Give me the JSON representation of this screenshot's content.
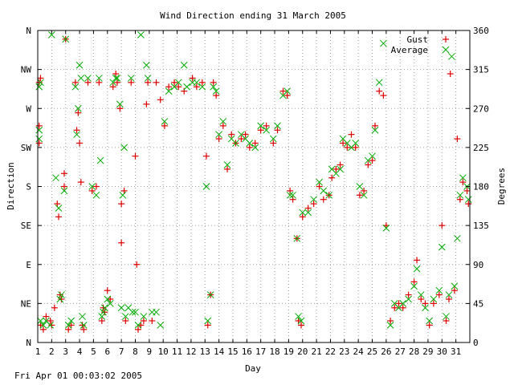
{
  "chart_data": {
    "type": "scatter",
    "title": "Wind Direction ending 31 March 2005",
    "xlabel": "Day",
    "ylabel_left": "Direction",
    "ylabel_right": "Degrees",
    "xlim": [
      1,
      32
    ],
    "ylim": [
      0,
      360
    ],
    "x_ticks": [
      "1",
      "2",
      "3",
      "4",
      "5",
      "6",
      "7",
      "8",
      "9",
      "10",
      "11",
      "12",
      "13",
      "14",
      "15",
      "16",
      "17",
      "18",
      "19",
      "20",
      "21",
      "22",
      "23",
      "24",
      "25",
      "26",
      "27",
      "28",
      "29",
      "30",
      "31"
    ],
    "y_left_ticks": [
      "N",
      "NE",
      "E",
      "SE",
      "S",
      "SW",
      "W",
      "NW",
      "N"
    ],
    "y_right_ticks": [
      "0",
      "45",
      "90",
      "135",
      "180",
      "225",
      "270",
      "315",
      "360"
    ],
    "grid": true,
    "legend_position": "top-right",
    "series": [
      {
        "name": "Gust",
        "color": "#dd0000",
        "marker": "plus",
        "points": [
          [
            1.1,
            300
          ],
          [
            1.2,
            305
          ],
          [
            1.1,
            250
          ],
          [
            1.1,
            230
          ],
          [
            1.2,
            20
          ],
          [
            1.4,
            15
          ],
          [
            1.6,
            30
          ],
          [
            1.9,
            25
          ],
          [
            2.0,
            20
          ],
          [
            2.2,
            40
          ],
          [
            2.4,
            160
          ],
          [
            2.5,
            145
          ],
          [
            2.6,
            55
          ],
          [
            2.7,
            50
          ],
          [
            2.9,
            180
          ],
          [
            2.9,
            195
          ],
          [
            3.0,
            350
          ],
          [
            3.2,
            15
          ],
          [
            3.4,
            20
          ],
          [
            3.7,
            300
          ],
          [
            3.8,
            245
          ],
          [
            3.9,
            265
          ],
          [
            4.0,
            230
          ],
          [
            4.1,
            185
          ],
          [
            4.2,
            20
          ],
          [
            4.3,
            15
          ],
          [
            4.6,
            300
          ],
          [
            4.9,
            175
          ],
          [
            5.2,
            180
          ],
          [
            5.4,
            300
          ],
          [
            5.6,
            25
          ],
          [
            5.7,
            40
          ],
          [
            5.8,
            35
          ],
          [
            6.0,
            60
          ],
          [
            6.2,
            50
          ],
          [
            6.4,
            295
          ],
          [
            6.6,
            310
          ],
          [
            6.7,
            300
          ],
          [
            6.9,
            270
          ],
          [
            7.0,
            115
          ],
          [
            7.0,
            160
          ],
          [
            7.2,
            175
          ],
          [
            7.3,
            25
          ],
          [
            7.7,
            300
          ],
          [
            8.0,
            215
          ],
          [
            8.1,
            90
          ],
          [
            8.2,
            15
          ],
          [
            8.4,
            20
          ],
          [
            8.6,
            25
          ],
          [
            8.8,
            275
          ],
          [
            8.9,
            300
          ],
          [
            9.2,
            25
          ],
          [
            9.5,
            300
          ],
          [
            9.8,
            280
          ],
          [
            10.1,
            250
          ],
          [
            10.4,
            295
          ],
          [
            10.8,
            300
          ],
          [
            11.1,
            295
          ],
          [
            11.5,
            290
          ],
          [
            12.1,
            305
          ],
          [
            12.4,
            295
          ],
          [
            12.8,
            300
          ],
          [
            13.1,
            215
          ],
          [
            13.2,
            20
          ],
          [
            13.4,
            55
          ],
          [
            13.6,
            300
          ],
          [
            13.8,
            285
          ],
          [
            14.0,
            235
          ],
          [
            14.3,
            250
          ],
          [
            14.6,
            200
          ],
          [
            14.9,
            240
          ],
          [
            15.2,
            230
          ],
          [
            15.6,
            235
          ],
          [
            15.9,
            240
          ],
          [
            16.2,
            225
          ],
          [
            16.6,
            230
          ],
          [
            17.0,
            245
          ],
          [
            17.4,
            250
          ],
          [
            17.9,
            230
          ],
          [
            18.2,
            245
          ],
          [
            18.6,
            290
          ],
          [
            18.9,
            285
          ],
          [
            19.1,
            175
          ],
          [
            19.3,
            165
          ],
          [
            19.6,
            120
          ],
          [
            19.7,
            25
          ],
          [
            19.9,
            20
          ],
          [
            20.0,
            145
          ],
          [
            20.4,
            155
          ],
          [
            20.8,
            160
          ],
          [
            21.2,
            180
          ],
          [
            21.5,
            165
          ],
          [
            21.9,
            170
          ],
          [
            22.1,
            190
          ],
          [
            22.4,
            200
          ],
          [
            22.7,
            205
          ],
          [
            22.9,
            230
          ],
          [
            23.2,
            225
          ],
          [
            23.5,
            240
          ],
          [
            23.8,
            225
          ],
          [
            24.1,
            170
          ],
          [
            24.4,
            175
          ],
          [
            24.7,
            205
          ],
          [
            25.0,
            210
          ],
          [
            25.2,
            250
          ],
          [
            25.5,
            290
          ],
          [
            25.8,
            285
          ],
          [
            26.0,
            135
          ],
          [
            26.3,
            25
          ],
          [
            26.6,
            40
          ],
          [
            26.9,
            45
          ],
          [
            27.2,
            40
          ],
          [
            27.6,
            55
          ],
          [
            28.0,
            70
          ],
          [
            28.2,
            95
          ],
          [
            28.5,
            50
          ],
          [
            28.8,
            45
          ],
          [
            29.1,
            20
          ],
          [
            29.4,
            45
          ],
          [
            29.8,
            55
          ],
          [
            30.0,
            135
          ],
          [
            30.3,
            25
          ],
          [
            30.5,
            50
          ],
          [
            30.6,
            310
          ],
          [
            30.9,
            60
          ],
          [
            31.1,
            235
          ],
          [
            31.3,
            165
          ],
          [
            31.5,
            185
          ],
          [
            31.8,
            175
          ],
          [
            31.9,
            160
          ]
        ]
      },
      {
        "name": "Average",
        "color": "#00aa00",
        "marker": "cross",
        "points": [
          [
            1.1,
            295
          ],
          [
            1.2,
            300
          ],
          [
            1.1,
            245
          ],
          [
            1.1,
            235
          ],
          [
            1.2,
            25
          ],
          [
            1.4,
            20
          ],
          [
            1.6,
            25
          ],
          [
            1.9,
            20
          ],
          [
            2.0,
            355
          ],
          [
            2.3,
            190
          ],
          [
            2.5,
            155
          ],
          [
            2.6,
            50
          ],
          [
            2.7,
            55
          ],
          [
            2.9,
            175
          ],
          [
            3.0,
            350
          ],
          [
            3.2,
            20
          ],
          [
            3.4,
            25
          ],
          [
            3.7,
            295
          ],
          [
            3.8,
            240
          ],
          [
            3.9,
            270
          ],
          [
            4.0,
            320
          ],
          [
            4.1,
            305
          ],
          [
            4.2,
            30
          ],
          [
            4.3,
            20
          ],
          [
            4.6,
            305
          ],
          [
            4.9,
            180
          ],
          [
            5.2,
            170
          ],
          [
            5.4,
            305
          ],
          [
            5.5,
            210
          ],
          [
            5.6,
            30
          ],
          [
            5.7,
            35
          ],
          [
            5.8,
            40
          ],
          [
            6.0,
            50
          ],
          [
            6.2,
            45
          ],
          [
            6.4,
            300
          ],
          [
            6.6,
            305
          ],
          [
            6.7,
            305
          ],
          [
            6.9,
            275
          ],
          [
            7.0,
            40
          ],
          [
            7.1,
            170
          ],
          [
            7.2,
            225
          ],
          [
            7.3,
            30
          ],
          [
            7.5,
            40
          ],
          [
            7.8,
            35
          ],
          [
            7.7,
            305
          ],
          [
            8.0,
            35
          ],
          [
            8.2,
            20
          ],
          [
            8.4,
            355
          ],
          [
            8.6,
            30
          ],
          [
            8.8,
            320
          ],
          [
            8.9,
            305
          ],
          [
            9.2,
            35
          ],
          [
            9.5,
            35
          ],
          [
            9.8,
            20
          ],
          [
            10.1,
            255
          ],
          [
            10.4,
            290
          ],
          [
            10.8,
            295
          ],
          [
            11.1,
            300
          ],
          [
            11.5,
            320
          ],
          [
            11.7,
            295
          ],
          [
            12.1,
            300
          ],
          [
            12.4,
            300
          ],
          [
            12.8,
            295
          ],
          [
            13.1,
            180
          ],
          [
            13.2,
            25
          ],
          [
            13.4,
            55
          ],
          [
            13.6,
            295
          ],
          [
            13.8,
            290
          ],
          [
            14.0,
            240
          ],
          [
            14.3,
            255
          ],
          [
            14.6,
            205
          ],
          [
            14.9,
            235
          ],
          [
            15.2,
            230
          ],
          [
            15.6,
            240
          ],
          [
            15.9,
            235
          ],
          [
            16.2,
            230
          ],
          [
            16.6,
            225
          ],
          [
            17.0,
            250
          ],
          [
            17.4,
            245
          ],
          [
            17.9,
            235
          ],
          [
            18.2,
            250
          ],
          [
            18.6,
            285
          ],
          [
            18.9,
            290
          ],
          [
            19.1,
            170
          ],
          [
            19.3,
            170
          ],
          [
            19.6,
            120
          ],
          [
            19.7,
            30
          ],
          [
            19.9,
            25
          ],
          [
            20.0,
            150
          ],
          [
            20.4,
            150
          ],
          [
            20.8,
            165
          ],
          [
            21.2,
            185
          ],
          [
            21.5,
            175
          ],
          [
            21.9,
            170
          ],
          [
            22.1,
            200
          ],
          [
            22.4,
            195
          ],
          [
            22.7,
            200
          ],
          [
            22.9,
            235
          ],
          [
            23.2,
            230
          ],
          [
            23.5,
            225
          ],
          [
            23.8,
            230
          ],
          [
            24.1,
            180
          ],
          [
            24.4,
            170
          ],
          [
            24.7,
            210
          ],
          [
            25.0,
            215
          ],
          [
            25.2,
            245
          ],
          [
            25.5,
            300
          ],
          [
            25.8,
            345
          ],
          [
            26.0,
            132
          ],
          [
            26.3,
            20
          ],
          [
            26.6,
            45
          ],
          [
            26.9,
            40
          ],
          [
            27.2,
            45
          ],
          [
            27.6,
            50
          ],
          [
            28.0,
            65
          ],
          [
            28.2,
            85
          ],
          [
            28.5,
            55
          ],
          [
            28.8,
            40
          ],
          [
            29.1,
            25
          ],
          [
            29.4,
            50
          ],
          [
            29.8,
            60
          ],
          [
            30.0,
            110
          ],
          [
            30.3,
            30
          ],
          [
            30.5,
            55
          ],
          [
            30.7,
            330
          ],
          [
            30.9,
            65
          ],
          [
            31.1,
            120
          ],
          [
            31.3,
            170
          ],
          [
            31.5,
            190
          ],
          [
            31.8,
            180
          ],
          [
            31.9,
            165
          ]
        ]
      }
    ]
  },
  "footer": {
    "timestamp": "Fri Apr 01 00:03:02 2005"
  }
}
